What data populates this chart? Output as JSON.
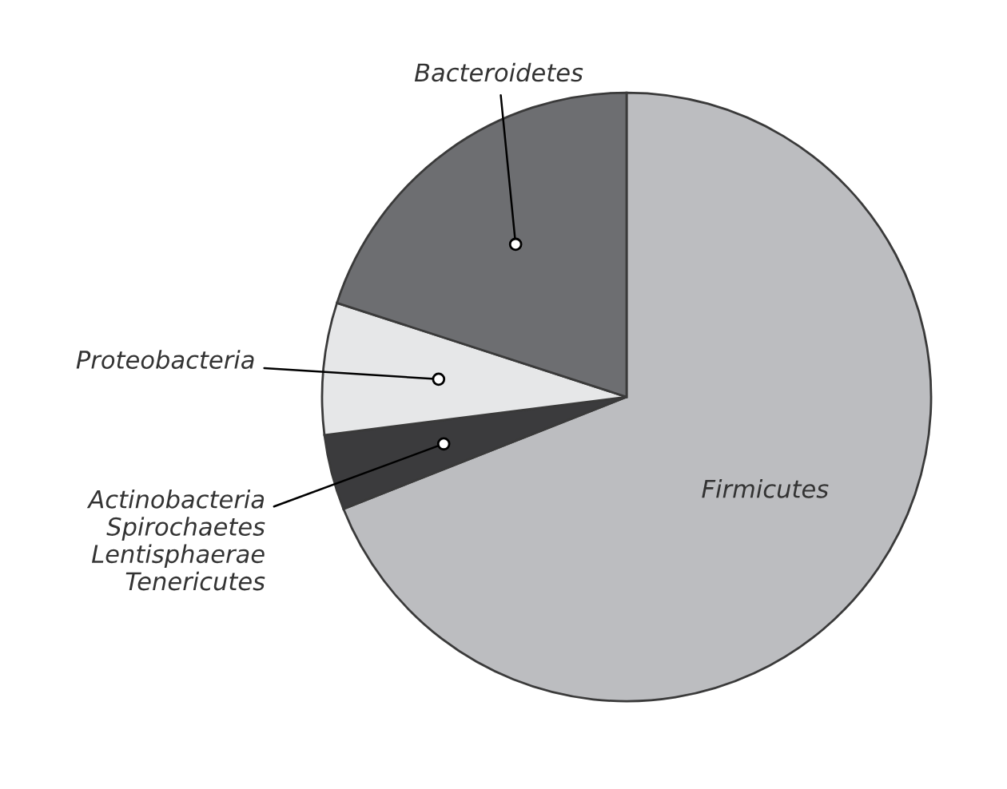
{
  "chart_data": {
    "type": "pie",
    "categories": [
      "Firmicutes",
      "Actinobacteria\nSpirochaetes\nLentisphaerae\nTenericutes",
      "Proteobacteria",
      "Bacteroidetes"
    ],
    "values": [
      69,
      4,
      7,
      20
    ],
    "colors": [
      "#bcbdc0",
      "#3b3b3d",
      "#e6e7e8",
      "#6d6e71"
    ]
  }
}
